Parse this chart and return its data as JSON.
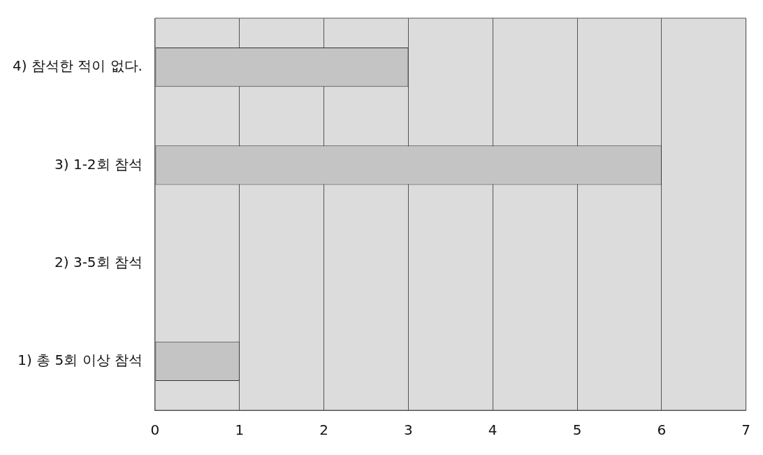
{
  "chart_data": {
    "type": "bar",
    "orientation": "horizontal",
    "categories": [
      "4) 참석한 적이 없다.",
      "3) 1-2회 참석",
      "2) 3-5회 참석",
      "1) 총 5회 이상 참석"
    ],
    "values": [
      3,
      6,
      0,
      1
    ],
    "color": "#c4c4c4",
    "xlim": [
      0,
      7
    ],
    "xticks": [
      0,
      1,
      2,
      3,
      4,
      5,
      6,
      7
    ],
    "grid": "x",
    "legend": false
  }
}
